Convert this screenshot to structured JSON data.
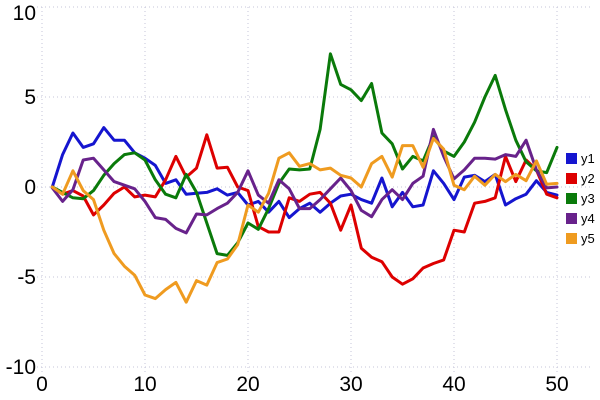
{
  "chart_data": {
    "type": "line",
    "title": "",
    "xlabel": "",
    "ylabel": "",
    "xlim": [
      0,
      50
    ],
    "ylim": [
      -10,
      10
    ],
    "x_ticks": [
      0,
      10,
      20,
      30,
      40,
      50
    ],
    "y_ticks": [
      10,
      5,
      0,
      -5,
      -10
    ],
    "grid": "dotted",
    "grid_color": "#c6c6da",
    "tick_label_color": "#000000",
    "legend_position": "right",
    "x": [
      1,
      2,
      3,
      4,
      5,
      6,
      7,
      8,
      9,
      10,
      11,
      12,
      13,
      14,
      15,
      16,
      17,
      18,
      19,
      20,
      21,
      22,
      23,
      24,
      25,
      26,
      27,
      28,
      29,
      30,
      31,
      32,
      33,
      34,
      35,
      36,
      37,
      38,
      39,
      40,
      41,
      42,
      43,
      44,
      45,
      46,
      47,
      48,
      49,
      50
    ],
    "series": [
      {
        "name": "y1",
        "color": "#1515cf",
        "values": [
          0,
          1.8,
          3.0,
          2.2,
          2.4,
          3.3,
          2.6,
          2.6,
          1.9,
          1.6,
          1.2,
          0.2,
          0.4,
          -0.4,
          -0.35,
          -0.3,
          -0.1,
          -0.45,
          -0.3,
          -1.0,
          -0.8,
          -1.4,
          -0.8,
          -1.7,
          -1.2,
          -0.9,
          -1.4,
          -0.9,
          -0.5,
          -0.4,
          -0.7,
          -0.9,
          0.5,
          -1.1,
          -0.3,
          -1.1,
          -1.0,
          0.9,
          0.2,
          -0.7,
          0.55,
          0.65,
          0.3,
          0.7,
          -1.0,
          -0.65,
          -0.4,
          0.35,
          -0.3,
          -0.45
        ]
      },
      {
        "name": "y2",
        "color": "#dd0000",
        "values": [
          0,
          -0.4,
          -0.2,
          -0.5,
          -1.55,
          -1.0,
          -0.35,
          0.0,
          -0.55,
          -0.45,
          -0.55,
          0.4,
          1.7,
          0.55,
          1.05,
          2.9,
          1.05,
          1.1,
          0.0,
          -0.2,
          -2.2,
          -2.5,
          -2.5,
          -0.6,
          -0.8,
          -0.4,
          -0.3,
          -0.9,
          -2.4,
          -1.0,
          -3.4,
          -3.9,
          -4.15,
          -5.0,
          -5.4,
          -5.1,
          -4.5,
          -4.25,
          -4.05,
          -2.4,
          -2.5,
          -0.9,
          -0.8,
          -0.6,
          1.7,
          0.3,
          1.5,
          0.95,
          -0.4,
          -0.6
        ]
      },
      {
        "name": "y3",
        "color": "#0a7a0a",
        "values": [
          0,
          -0.3,
          -0.6,
          -0.65,
          -0.2,
          0.65,
          1.3,
          1.8,
          1.9,
          1.5,
          0.4,
          -0.4,
          -0.6,
          0.7,
          -0.3,
          -2.0,
          -3.7,
          -3.8,
          -3.1,
          -2.0,
          -2.35,
          -1.2,
          0.2,
          1.0,
          0.95,
          1.0,
          3.2,
          7.4,
          5.7,
          5.4,
          4.8,
          5.75,
          3.0,
          2.4,
          1.0,
          1.7,
          1.45,
          2.8,
          2.0,
          1.7,
          2.5,
          3.6,
          5.0,
          6.2,
          4.3,
          2.6,
          1.4,
          0.9,
          0.8,
          2.2
        ]
      },
      {
        "name": "y4",
        "color": "#68228b",
        "values": [
          -0.05,
          -0.8,
          -0.15,
          1.5,
          1.6,
          0.95,
          0.3,
          0.1,
          -0.1,
          -0.8,
          -1.7,
          -1.8,
          -2.3,
          -2.55,
          -1.5,
          -1.55,
          -1.2,
          -0.9,
          -0.3,
          0.9,
          -0.45,
          -0.9,
          0.4,
          -0.1,
          -1.2,
          -1.2,
          -0.7,
          -0.1,
          0.5,
          -0.2,
          -1.3,
          -1.65,
          -0.7,
          -0.15,
          -0.7,
          0.2,
          0.6,
          3.2,
          1.7,
          0.45,
          0.95,
          1.6,
          1.6,
          1.55,
          1.8,
          1.7,
          2.6,
          0.95,
          -0.05,
          0.0
        ]
      },
      {
        "name": "y5",
        "color": "#ef9b20",
        "values": [
          0,
          -0.4,
          0.9,
          -0.2,
          -0.7,
          -2.4,
          -3.7,
          -4.4,
          -4.9,
          -6.0,
          -6.2,
          -5.7,
          -5.3,
          -6.4,
          -5.2,
          -5.45,
          -4.2,
          -4.0,
          -3.2,
          -1.0,
          -1.4,
          -0.35,
          1.6,
          1.9,
          1.15,
          1.3,
          0.95,
          1.05,
          0.65,
          0.5,
          0.0,
          1.3,
          1.7,
          0.55,
          2.3,
          2.3,
          1.1,
          2.7,
          2.1,
          0.1,
          -0.15,
          0.6,
          0.1,
          0.7,
          0.3,
          0.7,
          0.35,
          1.45,
          0.15,
          0.2
        ]
      }
    ]
  },
  "legend": {
    "items": [
      {
        "label": "y1",
        "color": "#1515cf"
      },
      {
        "label": "y2",
        "color": "#dd0000"
      },
      {
        "label": "y3",
        "color": "#0a7a0a"
      },
      {
        "label": "y4",
        "color": "#68228b"
      },
      {
        "label": "y5",
        "color": "#ef9b20"
      }
    ]
  }
}
